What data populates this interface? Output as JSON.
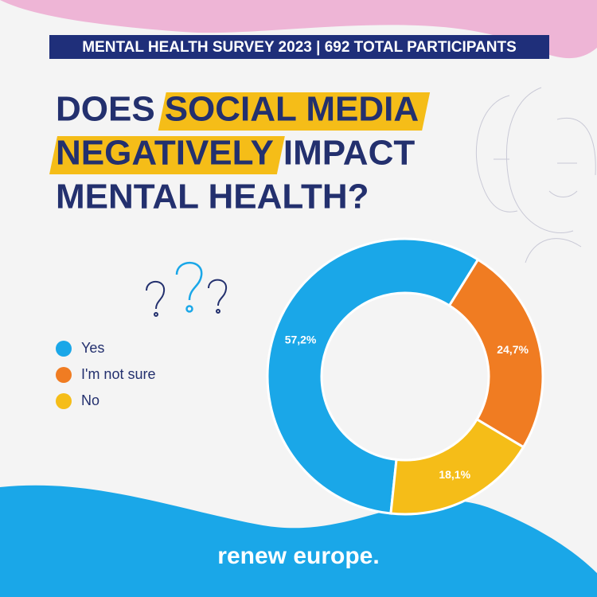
{
  "chart_data": {
    "type": "donut",
    "header": "MENTAL HEALTH SURVEY 2023 | 692 TOTAL PARTICIPANTS",
    "title": [
      [
        {
          "text": "DOES",
          "highlight": false
        },
        {
          "text": "SOCIAL MEDIA",
          "highlight": true
        }
      ],
      [
        {
          "text": "NEGATIVELY",
          "highlight": true
        },
        {
          "text": "IMPACT",
          "highlight": false
        }
      ],
      [
        {
          "text": "MENTAL HEALTH?",
          "highlight": false
        }
      ]
    ],
    "categories": [
      "Yes",
      "I'm not sure",
      "No"
    ],
    "values": [
      57.2,
      24.7,
      18.1
    ],
    "value_labels": [
      "57,2%",
      "24,7%",
      "18,1%"
    ],
    "colors": [
      "#1aa7e8",
      "#f07c22",
      "#f5bd18"
    ],
    "highlight_color": "#f5bd18",
    "footer": "renew europe."
  }
}
